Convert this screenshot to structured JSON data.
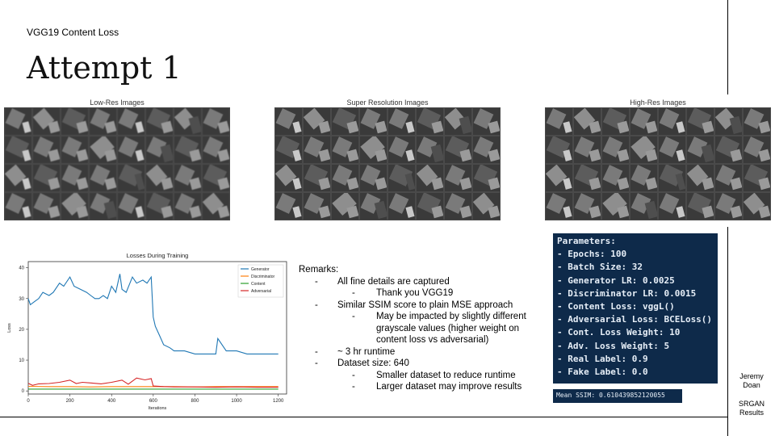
{
  "slide": {
    "subtitle": "VGG19 Content Loss",
    "title": "Attempt 1",
    "author_first": "Jeremy",
    "author_last": "Doan",
    "tag_line1": "SRGAN",
    "tag_line2": "Results"
  },
  "image_panels": {
    "low_res": "Low-Res Images",
    "super_res": "Super Resolution Images",
    "high_res": "High-Res Images"
  },
  "remarks": {
    "heading": "Remarks:",
    "lines": [
      {
        "level": 1,
        "text": "All fine details are captured"
      },
      {
        "level": 2,
        "text": "Thank you VGG19"
      },
      {
        "level": 1,
        "text": "Similar SSIM score to plain MSE approach"
      },
      {
        "level": 2,
        "text": "May be impacted by slightly different"
      },
      {
        "level": 3,
        "text": "grayscale values (higher weight on"
      },
      {
        "level": 3,
        "text": "content loss vs adversarial)"
      },
      {
        "level": 1,
        "text": "~ 3 hr runtime"
      },
      {
        "level": 1,
        "text": "Dataset size: 640"
      },
      {
        "level": 2,
        "text": "Smaller dataset to reduce runtime"
      },
      {
        "level": 2,
        "text": "Larger dataset may improve results"
      }
    ]
  },
  "parameters": {
    "header": "Parameters:",
    "items": [
      "- Epochs: 100",
      "- Batch Size: 32",
      "- Generator LR: 0.0025",
      "- Discriminator LR: 0.0015",
      "- Content Loss: vggL()",
      "- Adversarial Loss: BCELoss()",
      "- Cont. Loss Weight: 10",
      "- Adv. Loss Weight: 5",
      "- Real Label: 0.9",
      "- Fake Label: 0.0"
    ]
  },
  "ssim_text": "Mean SSIM: 0.610439852120055",
  "chart_data": {
    "type": "line",
    "title": "Losses During Training",
    "xlabel": "Iterations",
    "ylabel": "Loss",
    "xlim": [
      0,
      1240
    ],
    "ylim": [
      -1,
      42
    ],
    "xticks": [
      0,
      200,
      400,
      600,
      800,
      1000,
      1200
    ],
    "yticks": [
      0,
      10,
      20,
      30,
      40
    ],
    "legend_position": "top-right",
    "grid": false,
    "series": [
      {
        "name": "Generator",
        "color": "#1f77b4",
        "x": [
          0,
          10,
          30,
          50,
          70,
          100,
          120,
          150,
          170,
          200,
          220,
          250,
          280,
          300,
          320,
          340,
          360,
          380,
          400,
          420,
          440,
          450,
          470,
          500,
          520,
          550,
          570,
          590,
          600,
          610,
          630,
          650,
          680,
          700,
          750,
          800,
          850,
          900,
          910,
          950,
          1000,
          1050,
          1100,
          1150,
          1200
        ],
        "y": [
          30,
          28,
          29,
          30,
          32,
          31,
          32,
          35,
          34,
          37,
          34,
          33,
          32,
          31,
          30,
          30,
          31,
          30,
          34,
          32,
          38,
          33,
          32,
          37,
          35,
          36,
          35,
          37,
          24,
          21,
          18,
          15,
          14,
          13,
          13,
          12,
          12,
          12,
          17,
          13,
          13,
          12,
          12,
          12,
          12
        ]
      },
      {
        "name": "Discriminator",
        "color": "#ff7f0e",
        "x": [
          0,
          100,
          200,
          300,
          400,
          500,
          600,
          700,
          800,
          900,
          1000,
          1100,
          1200
        ],
        "y": [
          1.5,
          1.4,
          1.4,
          1.3,
          1.4,
          1.4,
          1.4,
          1.4,
          1.3,
          1.4,
          1.4,
          1.4,
          1.4
        ]
      },
      {
        "name": "Content",
        "color": "#2ca02c",
        "x": [
          0,
          100,
          200,
          300,
          400,
          500,
          600,
          700,
          800,
          900,
          1000,
          1100,
          1200
        ],
        "y": [
          0.6,
          0.6,
          0.6,
          0.6,
          0.6,
          0.6,
          0.6,
          0.6,
          0.6,
          0.6,
          0.6,
          0.6,
          0.6
        ]
      },
      {
        "name": "Adversarial",
        "color": "#d62728",
        "x": [
          0,
          20,
          50,
          100,
          150,
          200,
          230,
          260,
          300,
          350,
          400,
          450,
          480,
          520,
          560,
          590,
          600,
          650,
          700,
          800,
          900,
          1000,
          1100,
          1200
        ],
        "y": [
          2.5,
          1.8,
          2.3,
          2.4,
          2.8,
          3.5,
          2.4,
          2.8,
          2.6,
          2.3,
          2.8,
          3.5,
          2.2,
          4.2,
          3.6,
          4.0,
          1.6,
          1.4,
          1.3,
          1.3,
          1.2,
          1.3,
          1.2,
          1.2
        ]
      }
    ]
  }
}
